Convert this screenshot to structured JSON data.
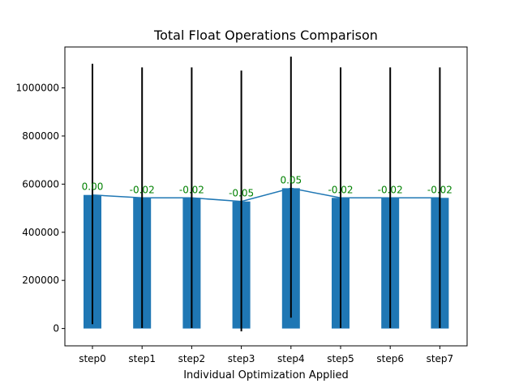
{
  "chart_data": {
    "type": "bar",
    "title": "Total Float Operations Comparison",
    "xlabel": "Individual Optimization Applied",
    "ylabel": "",
    "categories": [
      "step0",
      "step1",
      "step2",
      "step3",
      "step4",
      "step5",
      "step6",
      "step7"
    ],
    "values": [
      555000,
      543000,
      543000,
      528000,
      583000,
      543000,
      543000,
      543000
    ],
    "error_low": [
      18000,
      2000,
      2000,
      -12000,
      45000,
      2000,
      2000,
      2000
    ],
    "error_high": [
      1100000,
      1085000,
      1085000,
      1072000,
      1130000,
      1085000,
      1085000,
      1085000
    ],
    "data_labels": [
      "0.00",
      "-0.02",
      "-0.02",
      "-0.05",
      "0.05",
      "-0.02",
      "-0.02",
      "-0.02"
    ],
    "yticks": [
      0,
      200000,
      400000,
      600000,
      800000,
      1000000
    ],
    "ytick_labels": [
      "0",
      "200000",
      "400000",
      "600000",
      "800000",
      "1000000"
    ],
    "ylim": [
      -72000,
      1170000
    ],
    "grid": false,
    "colors": {
      "bar": "#1f77b4",
      "line": "#1f77b4",
      "error_bar": "#000000",
      "data_label": "#008000",
      "axes": "#000000"
    }
  }
}
